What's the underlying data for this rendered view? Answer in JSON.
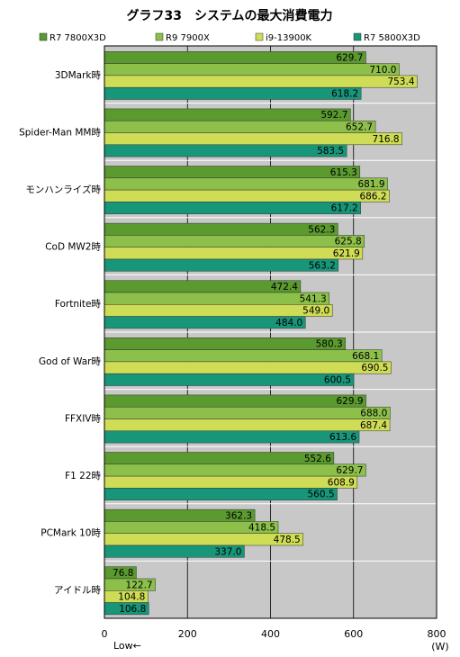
{
  "chart_data": {
    "type": "bar",
    "orientation": "horizontal",
    "title": "グラフ33　システムの最大消費電力",
    "unit_label": "(W)",
    "axis_note": "Low",
    "axis_note_arrow": "←",
    "xlim": [
      0,
      800
    ],
    "xticks": [
      0,
      200,
      400,
      600,
      800
    ],
    "grid": true,
    "legend_position": "top",
    "categories": [
      "3DMark時",
      "Spider-Man MM時",
      "モンハンライズ時",
      "CoD MW2時",
      "Fortnite時",
      "God of War時",
      "FFXIV時",
      "F1 22時",
      "PCMark 10時",
      "アイドル時"
    ],
    "series": [
      {
        "name": "R7 7800X3D",
        "color": "#5a9a2e",
        "values": [
          629.7,
          592.7,
          615.3,
          562.3,
          472.4,
          580.3,
          629.9,
          552.6,
          362.3,
          76.8
        ],
        "labels": [
          "629.7",
          "592.7",
          "615.3",
          "562.3",
          "472.4",
          "580.3",
          "629.9",
          "552.6",
          "362.3",
          "76.8"
        ]
      },
      {
        "name": "R9 7900X",
        "color": "#8cc04a",
        "values": [
          710.0,
          652.7,
          681.9,
          625.8,
          541.3,
          668.1,
          688.0,
          629.7,
          418.5,
          122.7
        ],
        "labels": [
          "710.0",
          "652.7",
          "681.9",
          "625.8",
          "541.3",
          "668.1",
          "688.0",
          "629.7",
          "418.5",
          "122.7"
        ]
      },
      {
        "name": "i9-13900K",
        "color": "#cfdc55",
        "values": [
          753.4,
          716.8,
          686.2,
          621.9,
          549.0,
          690.5,
          687.4,
          608.9,
          478.5,
          104.8
        ],
        "labels": [
          "753.4",
          "716.8",
          "686.2",
          "621.9",
          "549.0",
          "690.5",
          "687.4",
          "608.9",
          "478.5",
          "104.8"
        ]
      },
      {
        "name": "R7 5800X3D",
        "color": "#17967a",
        "values": [
          618.2,
          583.5,
          617.2,
          563.2,
          484.0,
          600.5,
          613.6,
          560.5,
          337.0,
          106.8
        ],
        "labels": [
          "618.2",
          "583.5",
          "617.2",
          "563.2",
          "484.0",
          "600.5",
          "613.6",
          "560.5",
          "337.0",
          "106.8"
        ]
      }
    ],
    "plot_background": "#c8c8c8"
  }
}
